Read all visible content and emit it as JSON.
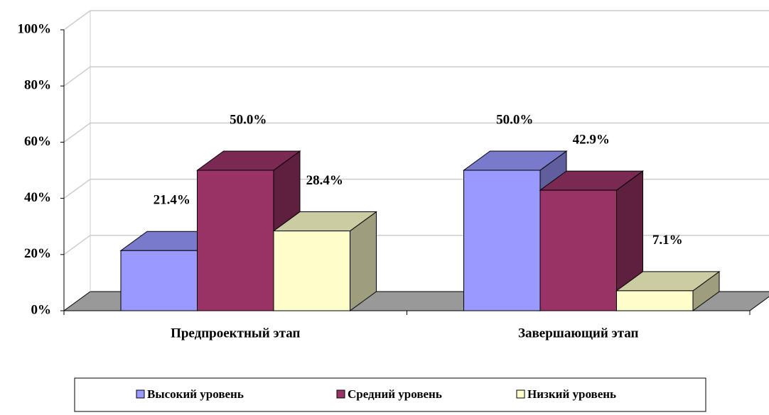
{
  "chart_data": {
    "type": "bar3d",
    "categories": [
      "Предпроектный этап",
      "Завершающий этап"
    ],
    "series": [
      {
        "name": "Высокий уровень",
        "color": "#9999ff",
        "values": [
          21.4,
          50.0
        ],
        "value_labels": [
          "21.4%",
          "50.0%"
        ]
      },
      {
        "name": "Средний уровень",
        "color": "#993366",
        "values": [
          50.0,
          42.9
        ],
        "value_labels": [
          "50.0%",
          "42.9%"
        ]
      },
      {
        "name": "Низкий уровень",
        "color": "#ffffcc",
        "values": [
          28.4,
          7.1
        ],
        "value_labels": [
          "28.4%",
          "7.1%"
        ]
      }
    ],
    "ylim": [
      0,
      100
    ],
    "yticks": [
      {
        "value": 0,
        "label": "0%"
      },
      {
        "value": 20,
        "label": "20%"
      },
      {
        "value": 40,
        "label": "40%"
      },
      {
        "value": 60,
        "label": "60%"
      },
      {
        "value": 80,
        "label": "80%"
      },
      {
        "value": 100,
        "label": "100%"
      }
    ],
    "grid": true,
    "legend": "bottom"
  }
}
